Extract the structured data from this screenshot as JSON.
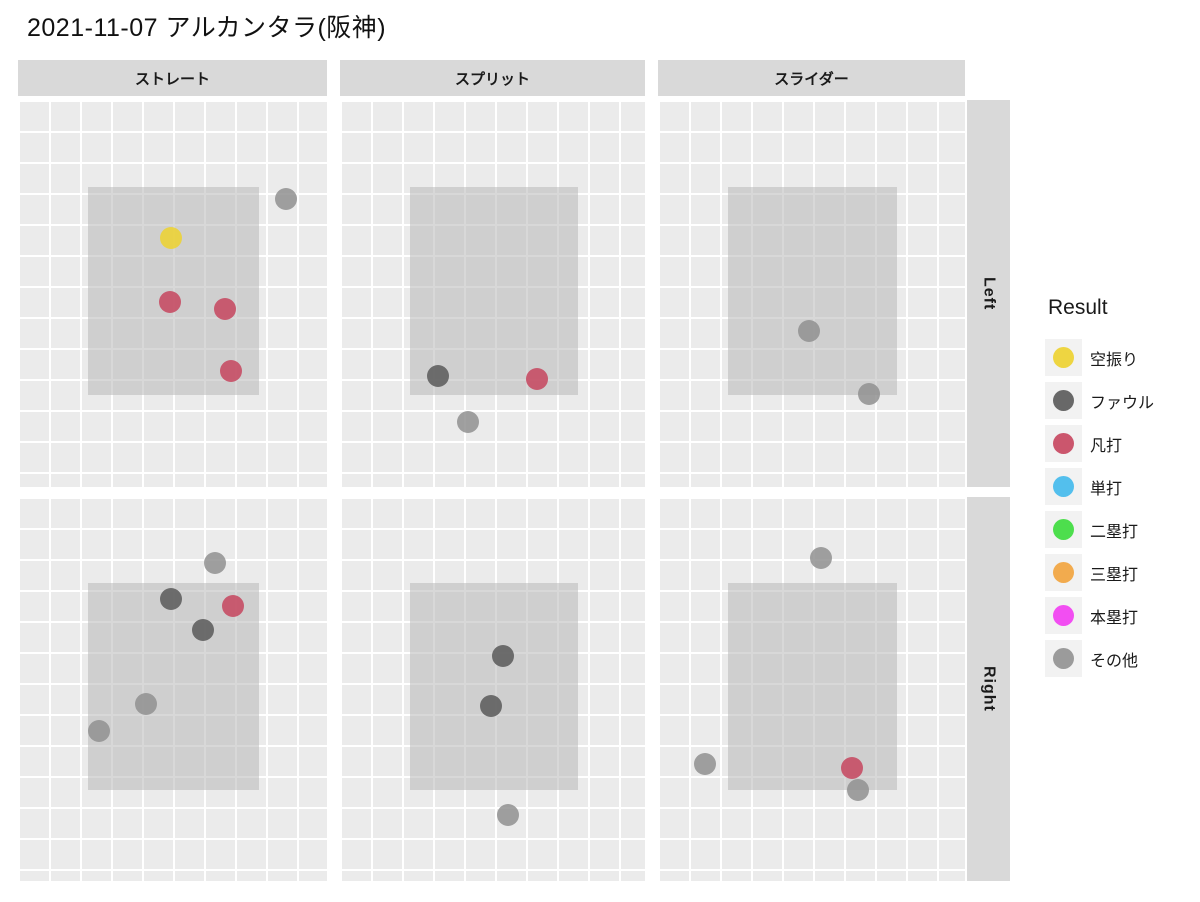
{
  "title": "2021-11-07 アルカンタラ(阪神)",
  "legend": {
    "title": "Result",
    "items": [
      {
        "label": "空振り",
        "color": "#edd22e"
      },
      {
        "label": "ファウル",
        "color": "#595959"
      },
      {
        "label": "凡打",
        "color": "#c6455e"
      },
      {
        "label": "単打",
        "color": "#41b9ec"
      },
      {
        "label": "二塁打",
        "color": "#3bdb3b"
      },
      {
        "label": "三塁打",
        "color": "#f2a33c"
      },
      {
        "label": "本塁打",
        "color": "#f23cf2"
      },
      {
        "label": "その他",
        "color": "#919191"
      }
    ]
  },
  "chart_data": {
    "type": "scatter",
    "title": "2021-11-07 アルカンタラ(阪神)",
    "facet_cols": [
      "ストレート",
      "スプリット",
      "スライダー"
    ],
    "facet_rows": [
      "Left",
      "Right"
    ],
    "legend_title": "Result",
    "axes_visible": false,
    "grid": "white squares on light gray panel",
    "coordinates": "fraction of facet panel (x right, y down)",
    "strike_zone": {
      "left": 0.228,
      "top": 0.225,
      "width": 0.552,
      "height": 0.537
    },
    "points": [
      {
        "row": "Left",
        "col": "ストレート",
        "result": "その他",
        "x": 0.867,
        "y": 0.256
      },
      {
        "row": "Left",
        "col": "ストレート",
        "result": "空振り",
        "x": 0.495,
        "y": 0.357
      },
      {
        "row": "Left",
        "col": "ストレート",
        "result": "凡打",
        "x": 0.492,
        "y": 0.522
      },
      {
        "row": "Left",
        "col": "ストレート",
        "result": "凡打",
        "x": 0.67,
        "y": 0.54
      },
      {
        "row": "Left",
        "col": "ストレート",
        "result": "凡打",
        "x": 0.689,
        "y": 0.7
      },
      {
        "row": "Left",
        "col": "スプリット",
        "result": "ファウル",
        "x": 0.321,
        "y": 0.713
      },
      {
        "row": "Left",
        "col": "スプリット",
        "result": "凡打",
        "x": 0.646,
        "y": 0.721
      },
      {
        "row": "Left",
        "col": "スプリット",
        "result": "その他",
        "x": 0.42,
        "y": 0.832
      },
      {
        "row": "Left",
        "col": "スライダー",
        "result": "その他",
        "x": 0.492,
        "y": 0.597
      },
      {
        "row": "Left",
        "col": "スライダー",
        "result": "その他",
        "x": 0.687,
        "y": 0.76
      },
      {
        "row": "Right",
        "col": "ストレート",
        "result": "その他",
        "x": 0.638,
        "y": 0.172
      },
      {
        "row": "Right",
        "col": "ストレート",
        "result": "ファウル",
        "x": 0.495,
        "y": 0.266
      },
      {
        "row": "Right",
        "col": "ストレート",
        "result": "凡打",
        "x": 0.696,
        "y": 0.284
      },
      {
        "row": "Right",
        "col": "ストレート",
        "result": "ファウル",
        "x": 0.599,
        "y": 0.346
      },
      {
        "row": "Right",
        "col": "ストレート",
        "result": "その他",
        "x": 0.414,
        "y": 0.539
      },
      {
        "row": "Right",
        "col": "ストレート",
        "result": "その他",
        "x": 0.262,
        "y": 0.609
      },
      {
        "row": "Right",
        "col": "スプリット",
        "result": "ファウル",
        "x": 0.534,
        "y": 0.414
      },
      {
        "row": "Right",
        "col": "スプリット",
        "result": "ファウル",
        "x": 0.495,
        "y": 0.544
      },
      {
        "row": "Right",
        "col": "スプリット",
        "result": "その他",
        "x": 0.551,
        "y": 0.828
      },
      {
        "row": "Right",
        "col": "スライダー",
        "result": "その他",
        "x": 0.531,
        "y": 0.159
      },
      {
        "row": "Right",
        "col": "スライダー",
        "result": "その他",
        "x": 0.153,
        "y": 0.695
      },
      {
        "row": "Right",
        "col": "スライダー",
        "result": "凡打",
        "x": 0.632,
        "y": 0.706
      },
      {
        "row": "Right",
        "col": "スライダー",
        "result": "その他",
        "x": 0.651,
        "y": 0.763
      }
    ]
  }
}
